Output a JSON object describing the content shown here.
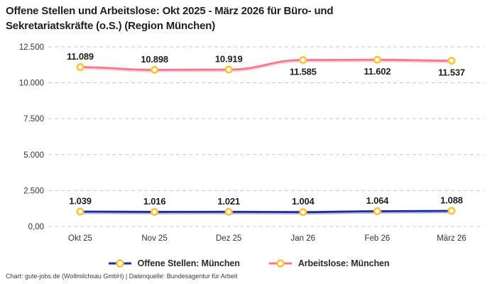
{
  "title_lines": [
    "Offene Stellen und Arbeitslose: Okt 2025 - März 2026 für Büro- und",
    "Sekretariatskräfte (o.S.) (Region München)"
  ],
  "footer_text": "Chart: gute-jobs.de (Wollmilchsau GmbH) | Datenquelle: Bundesagentur für Arbeit",
  "colors": {
    "offene_stellen_line": "#1E2F9B",
    "arbeitslose_line": "#F8768E",
    "marker_ring": "#FFC335",
    "marker_fill": "#FFFFFF",
    "gridline": "#C9C9C9",
    "tick_text": "#333333",
    "data_label_text": "#1D1D1D",
    "title_text": "#1F1F1F"
  },
  "chart_data": {
    "type": "line",
    "title": "Offene Stellen und Arbeitslose: Okt 2025 - März 2026 für Büro- und Sekretariatskräfte (o.S.) (Region München)",
    "categories": [
      "Okt 25",
      "Nov 25",
      "Dez 25",
      "Jan 26",
      "Feb 26",
      "März 26"
    ],
    "ylim": [
      0,
      12500
    ],
    "grid": "horizontal-dashed",
    "legend_position": "bottom",
    "y_ticks": [
      {
        "value": 12500,
        "label": "12.500"
      },
      {
        "value": 10000,
        "label": "10.000"
      },
      {
        "value": 7500,
        "label": "7.500"
      },
      {
        "value": 5000,
        "label": "5.000"
      },
      {
        "value": 2500,
        "label": "2.500"
      },
      {
        "value": 0,
        "label": "0,00"
      }
    ],
    "series": [
      {
        "name": "Offene Stellen: München",
        "color": "#1E2F9B",
        "values": [
          1039,
          1016,
          1021,
          1004,
          1064,
          1088
        ],
        "labels": [
          "1.039",
          "1.016",
          "1.021",
          "1.004",
          "1.064",
          "1.088"
        ],
        "label_side": [
          "above",
          "above",
          "above",
          "above",
          "above",
          "above"
        ]
      },
      {
        "name": "Arbeitslose: München",
        "color": "#F8768E",
        "values": [
          11089,
          10898,
          10919,
          11585,
          11602,
          11537
        ],
        "labels": [
          "11.089",
          "10.898",
          "10.919",
          "11.585",
          "11.602",
          "11.537"
        ],
        "label_side": [
          "above",
          "above",
          "above",
          "below",
          "below",
          "below"
        ]
      }
    ]
  }
}
